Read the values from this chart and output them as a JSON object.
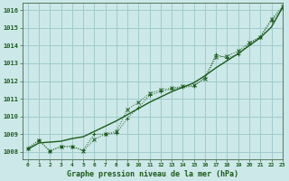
{
  "title": "Graphe pression niveau de la mer (hPa)",
  "bg_color": "#cce8e8",
  "grid_color": "#a0cccc",
  "line_color": "#1a5c1a",
  "xlim": [
    -0.5,
    23
  ],
  "ylim": [
    1007.6,
    1016.4
  ],
  "xticks": [
    0,
    1,
    2,
    3,
    4,
    5,
    6,
    7,
    8,
    9,
    10,
    11,
    12,
    13,
    14,
    15,
    16,
    17,
    18,
    19,
    20,
    21,
    22,
    23
  ],
  "yticks": [
    1008,
    1009,
    1010,
    1011,
    1012,
    1013,
    1014,
    1015,
    1016
  ],
  "series_marker1": [
    1008.2,
    1008.65,
    1008.05,
    1008.3,
    1008.3,
    1008.1,
    1009.0,
    1009.0,
    1009.05,
    1009.9,
    1010.5,
    1011.2,
    1011.4,
    1011.55,
    1011.65,
    1011.7,
    1012.2,
    1013.5,
    1013.3,
    1013.5,
    1014.1,
    1014.5,
    1015.4,
    1016.1
  ],
  "series_marker2": [
    1008.2,
    1008.65,
    1008.05,
    1008.3,
    1008.3,
    1008.05,
    1008.7,
    1009.0,
    1009.15,
    1010.4,
    1010.8,
    1011.3,
    1011.5,
    1011.6,
    1011.7,
    1011.75,
    1012.15,
    1013.35,
    1013.4,
    1013.7,
    1014.15,
    1014.5,
    1015.5,
    1016.2
  ],
  "series_smooth": [
    1008.15,
    1008.5,
    1008.55,
    1008.6,
    1008.75,
    1008.85,
    1009.15,
    1009.45,
    1009.75,
    1010.1,
    1010.45,
    1010.8,
    1011.1,
    1011.4,
    1011.65,
    1011.9,
    1012.3,
    1012.75,
    1013.15,
    1013.55,
    1014.0,
    1014.45,
    1015.05,
    1016.15
  ]
}
